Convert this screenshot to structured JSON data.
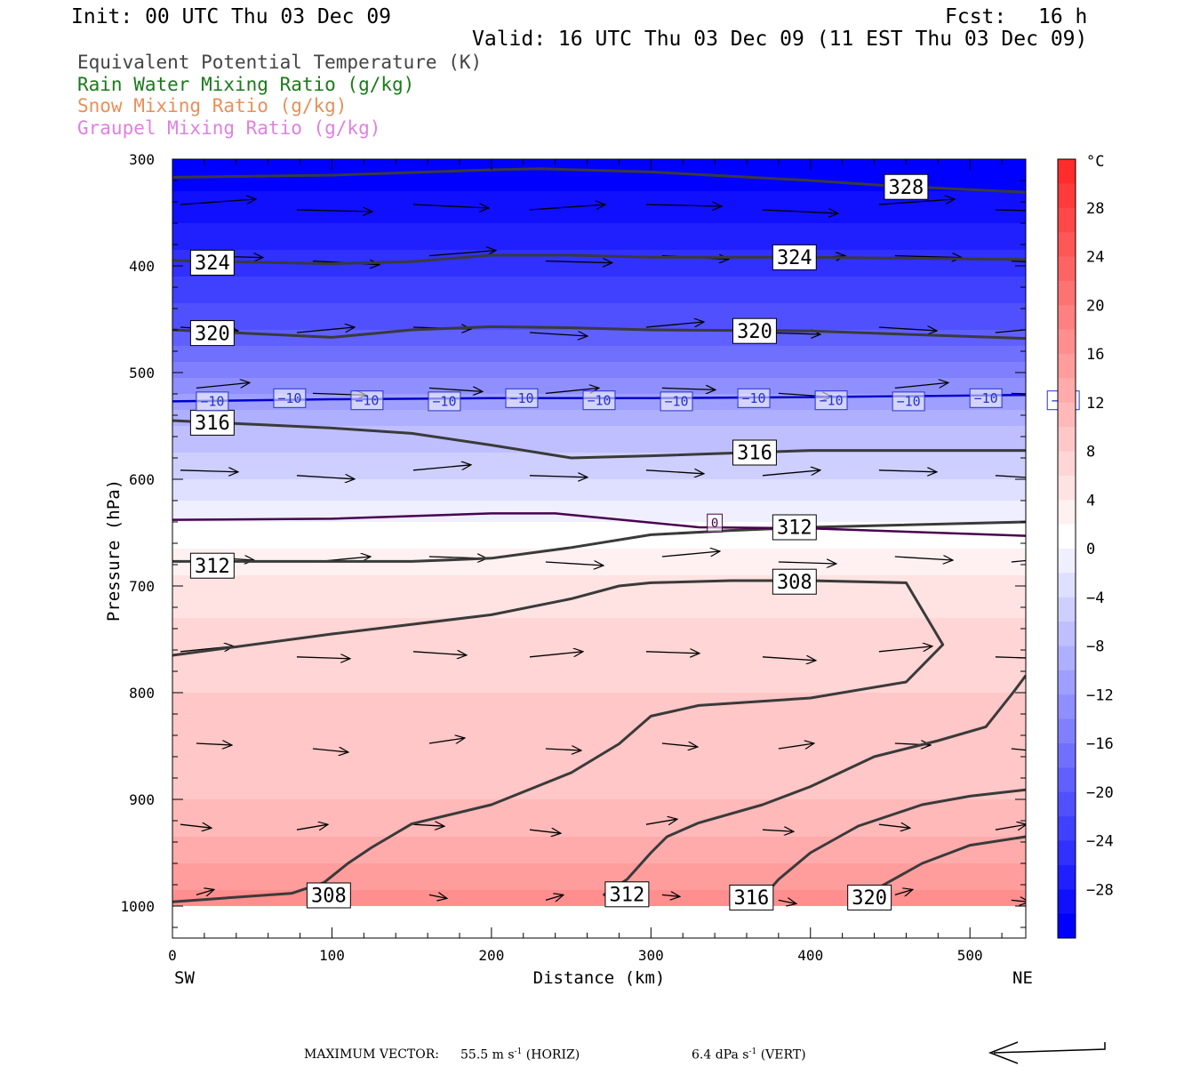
{
  "header": {
    "init": "Init: 00 UTC Thu 03 Dec 09",
    "fcst_label": "Fcst:",
    "fcst_value": "16 h",
    "valid": "Valid: 16 UTC Thu 03 Dec 09 (11 EST Thu 03 Dec 09)"
  },
  "legend": [
    {
      "text": "Equivalent Potential Temperature (K)",
      "color": "#444444"
    },
    {
      "text": "Rain Water Mixing Ratio (g/kg)",
      "color": "#1a7a1a"
    },
    {
      "text": "Snow Mixing Ratio (g/kg)",
      "color": "#e8905a"
    },
    {
      "text": "Graupel Mixing Ratio (g/kg)",
      "color": "#e080e0"
    }
  ],
  "footer": {
    "label": "MAXIMUM VECTOR:",
    "horiz_value": "55.5 m s",
    "horiz_exp": "-1",
    "horiz_tag": "(HORIZ)",
    "vert_value": "6.4 dPa s",
    "vert_exp": "-1",
    "vert_tag": "(VERT)"
  },
  "chart_data": {
    "type": "heatmap",
    "description_fields": [
      "temperature_fill",
      "theta_e_contours",
      "wind_vectors"
    ],
    "xlabel": "Distance (km)",
    "ylabel": "Pressure (hPa)",
    "x_left_label": "SW",
    "x_right_label": "NE",
    "xlim": [
      0,
      535
    ],
    "ylim": [
      1030,
      300
    ],
    "xticks": [
      0,
      100,
      200,
      300,
      400,
      500
    ],
    "yticks": [
      300,
      400,
      500,
      600,
      700,
      800,
      900,
      1000
    ],
    "colorbar": {
      "unit": "°C",
      "min": -32,
      "max": 32,
      "step": 2,
      "labels": [
        28,
        24,
        20,
        16,
        12,
        8,
        4,
        0,
        -4,
        -8,
        -12,
        -16,
        -20,
        -24,
        -28
      ],
      "cold_color": "#0000ff",
      "neutral_color": "#ffffff",
      "warm_color": "#ff1e1e"
    },
    "temperature_profile": [
      [
        300,
        -32
      ],
      [
        330,
        -30
      ],
      [
        360,
        -28
      ],
      [
        400,
        -25
      ],
      [
        450,
        -21
      ],
      [
        500,
        -15
      ],
      [
        550,
        -8
      ],
      [
        600,
        -4
      ],
      [
        640,
        0
      ],
      [
        680,
        3
      ],
      [
        700,
        5
      ],
      [
        760,
        7
      ],
      [
        800,
        8
      ],
      [
        850,
        8
      ],
      [
        900,
        10
      ],
      [
        950,
        13
      ],
      [
        1000,
        17
      ]
    ],
    "freezing_line": {
      "label": "0",
      "color": "#4a0050",
      "points": [
        [
          0,
          638
        ],
        [
          100,
          637
        ],
        [
          200,
          632
        ],
        [
          240,
          632
        ],
        [
          330,
          645
        ],
        [
          400,
          646
        ],
        [
          535,
          653
        ]
      ]
    },
    "minus10_line": {
      "label": "-10",
      "color": "#0000cc",
      "points": [
        [
          0,
          527
        ],
        [
          100,
          525
        ],
        [
          200,
          524
        ],
        [
          300,
          524
        ],
        [
          400,
          523
        ],
        [
          535,
          521
        ]
      ]
    },
    "theta_e_contours": [
      {
        "label": "328",
        "points": [
          [
            0,
            317
          ],
          [
            100,
            315
          ],
          [
            200,
            310
          ],
          [
            230,
            309
          ],
          [
            300,
            312
          ],
          [
            400,
            320
          ],
          [
            450,
            325
          ],
          [
            535,
            331
          ]
        ]
      },
      {
        "label": "324",
        "points": [
          [
            0,
            395
          ],
          [
            100,
            398
          ],
          [
            150,
            396
          ],
          [
            200,
            390
          ],
          [
            250,
            390
          ],
          [
            300,
            392
          ],
          [
            400,
            392
          ],
          [
            535,
            394
          ]
        ]
      },
      {
        "label": "320",
        "points": [
          [
            0,
            460
          ],
          [
            100,
            467
          ],
          [
            150,
            460
          ],
          [
            200,
            457
          ],
          [
            250,
            458
          ],
          [
            300,
            460
          ],
          [
            400,
            461
          ],
          [
            535,
            468
          ]
        ]
      },
      {
        "label": "316",
        "points": [
          [
            0,
            545
          ],
          [
            100,
            552
          ],
          [
            150,
            557
          ],
          [
            200,
            568
          ],
          [
            250,
            580
          ],
          [
            300,
            578
          ],
          [
            400,
            573
          ],
          [
            535,
            573
          ]
        ]
      },
      {
        "label": "312",
        "points": [
          [
            0,
            677
          ],
          [
            100,
            677
          ],
          [
            150,
            677
          ],
          [
            200,
            674
          ],
          [
            250,
            664
          ],
          [
            300,
            652
          ],
          [
            350,
            648
          ],
          [
            400,
            645
          ],
          [
            535,
            640
          ]
        ]
      },
      {
        "label": "308",
        "points": [
          [
            0,
            765
          ],
          [
            100,
            745
          ],
          [
            200,
            727
          ],
          [
            250,
            712
          ],
          [
            280,
            700
          ],
          [
            300,
            697
          ],
          [
            350,
            695
          ],
          [
            400,
            695
          ],
          [
            460,
            697
          ],
          [
            483,
            755
          ],
          [
            460,
            790
          ],
          [
            400,
            805
          ],
          [
            330,
            812
          ],
          [
            300,
            822
          ],
          [
            280,
            848
          ],
          [
            250,
            875
          ],
          [
            200,
            905
          ],
          [
            150,
            923
          ],
          [
            125,
            945
          ],
          [
            110,
            960
          ],
          [
            95,
            978
          ],
          [
            75,
            988
          ],
          [
            0,
            996
          ]
        ]
      },
      {
        "label": "312",
        "points": [
          [
            270,
            990
          ],
          [
            285,
            975
          ],
          [
            300,
            950
          ],
          [
            310,
            935
          ],
          [
            330,
            922
          ],
          [
            370,
            905
          ],
          [
            400,
            888
          ],
          [
            440,
            860
          ],
          [
            480,
            845
          ],
          [
            510,
            832
          ],
          [
            527,
            800
          ],
          [
            535,
            784
          ]
        ]
      },
      {
        "label": "316",
        "points": [
          [
            370,
            992
          ],
          [
            380,
            975
          ],
          [
            400,
            950
          ],
          [
            430,
            925
          ],
          [
            470,
            905
          ],
          [
            500,
            897
          ],
          [
            535,
            891
          ]
        ]
      },
      {
        "label": "320",
        "points": [
          [
            440,
            985
          ],
          [
            470,
            960
          ],
          [
            500,
            943
          ],
          [
            535,
            935
          ]
        ]
      }
    ],
    "wind_vectors_note": "arrows show mostly westerly (SW to NE) flow"
  }
}
